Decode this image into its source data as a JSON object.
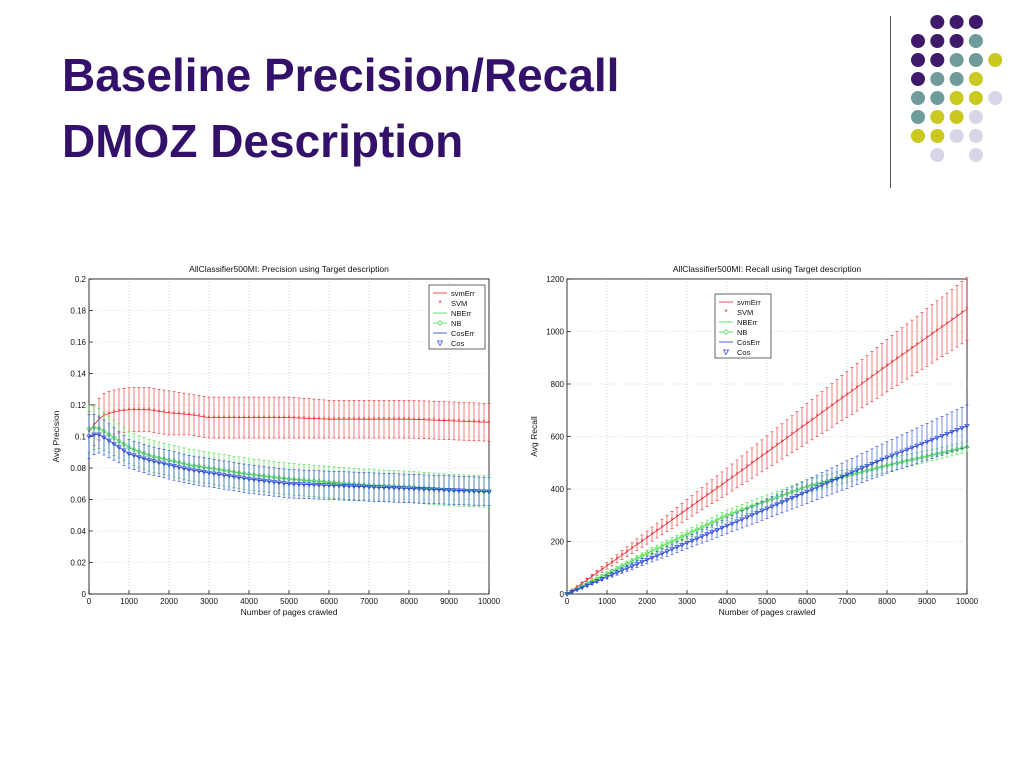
{
  "slide": {
    "title_line1": "Baseline Precision/Recall",
    "title_line2": "DMOZ Description"
  },
  "colors": {
    "title": "#33106a",
    "dot_purple": "#3f1a6b",
    "dot_teal": "#6f9c9a",
    "dot_yellow": "#c9c920",
    "dot_lavender": "#d6d6e8",
    "svm": "#e8262b",
    "nb": "#3ddc3d",
    "cos": "#1e3ed6"
  },
  "chart_data": [
    {
      "type": "line",
      "title": "AllClassifier500MI: Precision using Target description",
      "xlabel": "Number of pages crawled",
      "ylabel": "Avg Precision",
      "xlim": [
        0,
        10000
      ],
      "ylim": [
        0,
        0.2
      ],
      "xticks": [
        0,
        1000,
        2000,
        3000,
        4000,
        5000,
        6000,
        7000,
        8000,
        9000,
        10000
      ],
      "yticks": [
        0,
        0.02,
        0.04,
        0.06,
        0.08,
        0.1,
        0.12,
        0.14,
        0.16,
        0.18,
        0.2
      ],
      "ytick_labels": [
        "0",
        "0.02",
        "0.04",
        "0.06",
        "0.08",
        "0.1",
        "0.12",
        "0.14",
        "0.16",
        "0.18",
        "0.2"
      ],
      "grid": true,
      "legend_position": "top-right",
      "legend": [
        "svmErr",
        "SVM",
        "NBErr",
        "NB",
        "CosErr",
        "Cos"
      ],
      "series": [
        {
          "name": "SVM",
          "x": [
            0,
            200,
            400,
            700,
            1000,
            1500,
            2000,
            2500,
            3000,
            4000,
            5000,
            6000,
            7000,
            8000,
            9000,
            10000
          ],
          "y": [
            0.103,
            0.11,
            0.114,
            0.116,
            0.117,
            0.117,
            0.115,
            0.114,
            0.112,
            0.112,
            0.112,
            0.111,
            0.111,
            0.111,
            0.11,
            0.109
          ],
          "err": [
            0.013,
            0.013,
            0.014,
            0.014,
            0.014,
            0.014,
            0.014,
            0.013,
            0.013,
            0.013,
            0.013,
            0.012,
            0.012,
            0.012,
            0.012,
            0.012
          ]
        },
        {
          "name": "NB",
          "x": [
            0,
            200,
            400,
            700,
            1000,
            1500,
            2000,
            2500,
            3000,
            4000,
            5000,
            6000,
            7000,
            8000,
            9000,
            10000
          ],
          "y": [
            0.105,
            0.106,
            0.103,
            0.098,
            0.093,
            0.088,
            0.085,
            0.082,
            0.08,
            0.076,
            0.073,
            0.071,
            0.069,
            0.068,
            0.066,
            0.065
          ],
          "err": [
            0.015,
            0.013,
            0.012,
            0.011,
            0.01,
            0.01,
            0.01,
            0.01,
            0.01,
            0.01,
            0.01,
            0.01,
            0.01,
            0.01,
            0.01,
            0.01
          ]
        },
        {
          "name": "Cos",
          "x": [
            0,
            200,
            400,
            700,
            1000,
            1500,
            2000,
            2500,
            3000,
            4000,
            5000,
            6000,
            7000,
            8000,
            9000,
            10000
          ],
          "y": [
            0.1,
            0.102,
            0.099,
            0.094,
            0.089,
            0.085,
            0.082,
            0.079,
            0.077,
            0.073,
            0.07,
            0.069,
            0.068,
            0.067,
            0.066,
            0.065
          ],
          "err": [
            0.014,
            0.012,
            0.011,
            0.01,
            0.009,
            0.009,
            0.009,
            0.009,
            0.009,
            0.009,
            0.009,
            0.009,
            0.009,
            0.009,
            0.009,
            0.009
          ]
        }
      ]
    },
    {
      "type": "line",
      "title": "AllClassifier500MI: Recall using Target description",
      "xlabel": "Number of pages crawled",
      "ylabel": "Avg Recall",
      "xlim": [
        0,
        10000
      ],
      "ylim": [
        0,
        1200
      ],
      "xticks": [
        0,
        1000,
        2000,
        3000,
        4000,
        5000,
        6000,
        7000,
        8000,
        9000,
        10000
      ],
      "yticks": [
        0,
        200,
        400,
        600,
        800,
        1000,
        1200
      ],
      "ytick_labels": [
        "0",
        "200",
        "400",
        "600",
        "800",
        "1000",
        "1200"
      ],
      "grid": true,
      "legend_position": "top-center",
      "legend": [
        "svmErr",
        "SVM",
        "NBErr",
        "NB",
        "CosErr",
        "Cos"
      ],
      "series": [
        {
          "name": "SVM",
          "x": [
            0,
            2000,
            4000,
            6000,
            8000,
            10000
          ],
          "y": [
            0,
            215,
            430,
            650,
            870,
            1085
          ],
          "err": [
            0,
            25,
            50,
            75,
            100,
            120
          ]
        },
        {
          "name": "NB",
          "x": [
            0,
            2000,
            4000,
            6000,
            8000,
            10000
          ],
          "y": [
            0,
            155,
            300,
            410,
            490,
            560
          ],
          "err": [
            0,
            12,
            20,
            25,
            25,
            20
          ]
        },
        {
          "name": "Cos",
          "x": [
            0,
            2000,
            4000,
            6000,
            8000,
            10000
          ],
          "y": [
            0,
            130,
            260,
            390,
            520,
            640
          ],
          "err": [
            0,
            15,
            30,
            45,
            60,
            80
          ]
        }
      ]
    }
  ]
}
